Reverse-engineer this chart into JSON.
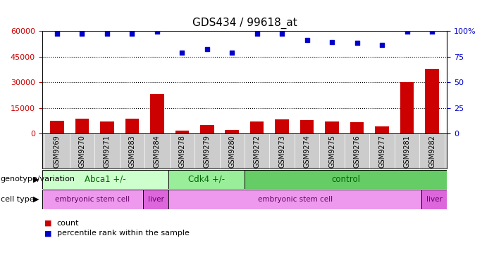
{
  "title": "GDS434 / 99618_at",
  "samples": [
    "GSM9269",
    "GSM9270",
    "GSM9271",
    "GSM9283",
    "GSM9284",
    "GSM9278",
    "GSM9279",
    "GSM9280",
    "GSM9272",
    "GSM9273",
    "GSM9274",
    "GSM9275",
    "GSM9276",
    "GSM9277",
    "GSM9281",
    "GSM9282"
  ],
  "counts": [
    7500,
    8600,
    7200,
    8800,
    23000,
    1800,
    5200,
    2200,
    7200,
    8400,
    7900,
    6900,
    6700,
    4200,
    30000,
    38000
  ],
  "percentile_ranks": [
    97,
    97,
    97,
    97,
    99,
    79,
    82,
    79,
    97,
    97,
    91,
    89,
    88,
    86,
    99,
    99
  ],
  "bar_color": "#cc0000",
  "dot_color": "#0000cc",
  "ylim_left": [
    0,
    60000
  ],
  "ylim_right": [
    0,
    100
  ],
  "yticks_left": [
    0,
    15000,
    30000,
    45000,
    60000
  ],
  "yticks_right": [
    0,
    25,
    50,
    75,
    100
  ],
  "genotype_groups": [
    {
      "label": "Abca1 +/-",
      "start": 0,
      "end": 5,
      "color": "#ccffcc"
    },
    {
      "label": "Cdk4 +/-",
      "start": 5,
      "end": 8,
      "color": "#99ee99"
    },
    {
      "label": "control",
      "start": 8,
      "end": 16,
      "color": "#66cc66"
    }
  ],
  "celltype_groups": [
    {
      "label": "embryonic stem cell",
      "start": 0,
      "end": 4,
      "color": "#ee99ee"
    },
    {
      "label": "liver",
      "start": 4,
      "end": 5,
      "color": "#dd66dd"
    },
    {
      "label": "embryonic stem cell",
      "start": 5,
      "end": 15,
      "color": "#ee99ee"
    },
    {
      "label": "liver",
      "start": 15,
      "end": 16,
      "color": "#dd66dd"
    }
  ],
  "tick_color_left": "#cc0000",
  "tick_color_right": "#0000cc",
  "background_color": "#ffffff",
  "tick_label_gray_bg": "#cccccc",
  "xlabel_genotype": "genotype/variation",
  "xlabel_celltype": "cell type",
  "legend_count_label": "count",
  "legend_dot_label": "percentile rank within the sample"
}
